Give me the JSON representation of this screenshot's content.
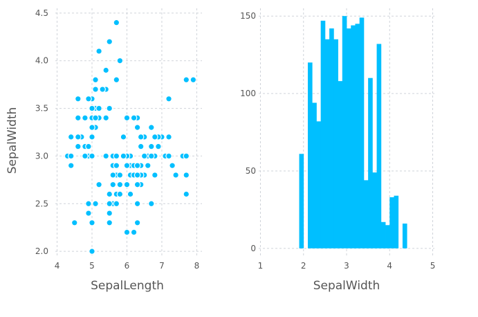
{
  "chart_data": [
    {
      "type": "scatter",
      "title": "",
      "xlabel": "SepalLength",
      "ylabel": "SepalWidth",
      "xlim": [
        3.95,
        8.15
      ],
      "ylim": [
        1.95,
        4.55
      ],
      "xticks": [
        4,
        5,
        6,
        7,
        8
      ],
      "xtick_labels": [
        "4",
        "5",
        "6",
        "7",
        "8"
      ],
      "yticks": [
        2.0,
        2.5,
        3.0,
        3.5,
        4.0,
        4.5
      ],
      "ytick_labels": [
        "2.0",
        "2.5",
        "3.0",
        "3.5",
        "4.0",
        "4.5"
      ],
      "grid": true,
      "legend": "none",
      "color": "#00bfff",
      "points": [
        [
          5.1,
          3.5
        ],
        [
          4.9,
          3.0
        ],
        [
          4.7,
          3.2
        ],
        [
          4.6,
          3.1
        ],
        [
          5.0,
          3.6
        ],
        [
          5.4,
          3.9
        ],
        [
          4.6,
          3.4
        ],
        [
          5.0,
          3.4
        ],
        [
          4.4,
          2.9
        ],
        [
          4.9,
          3.1
        ],
        [
          5.4,
          3.7
        ],
        [
          4.8,
          3.4
        ],
        [
          4.8,
          3.0
        ],
        [
          4.3,
          3.0
        ],
        [
          5.8,
          4.0
        ],
        [
          5.7,
          4.4
        ],
        [
          5.4,
          3.9
        ],
        [
          5.1,
          3.5
        ],
        [
          5.7,
          3.8
        ],
        [
          5.1,
          3.8
        ],
        [
          5.4,
          3.4
        ],
        [
          5.1,
          3.7
        ],
        [
          4.6,
          3.6
        ],
        [
          5.1,
          3.3
        ],
        [
          4.8,
          3.4
        ],
        [
          5.0,
          3.0
        ],
        [
          5.0,
          3.4
        ],
        [
          5.2,
          3.5
        ],
        [
          5.2,
          3.4
        ],
        [
          4.7,
          3.2
        ],
        [
          4.8,
          3.1
        ],
        [
          5.4,
          3.4
        ],
        [
          5.2,
          4.1
        ],
        [
          5.5,
          4.2
        ],
        [
          4.9,
          3.1
        ],
        [
          5.0,
          3.2
        ],
        [
          5.5,
          3.5
        ],
        [
          4.9,
          3.6
        ],
        [
          4.4,
          3.0
        ],
        [
          5.1,
          3.4
        ],
        [
          5.0,
          3.5
        ],
        [
          4.5,
          2.3
        ],
        [
          4.4,
          3.2
        ],
        [
          5.0,
          3.5
        ],
        [
          5.1,
          3.8
        ],
        [
          4.8,
          3.0
        ],
        [
          5.1,
          3.8
        ],
        [
          4.6,
          3.2
        ],
        [
          5.3,
          3.7
        ],
        [
          5.0,
          3.3
        ],
        [
          7.0,
          3.2
        ],
        [
          6.4,
          3.2
        ],
        [
          6.9,
          3.1
        ],
        [
          5.5,
          2.3
        ],
        [
          6.5,
          2.8
        ],
        [
          5.7,
          2.8
        ],
        [
          6.3,
          3.3
        ],
        [
          4.9,
          2.4
        ],
        [
          6.6,
          2.9
        ],
        [
          5.2,
          2.7
        ],
        [
          5.0,
          2.0
        ],
        [
          5.9,
          3.0
        ],
        [
          6.0,
          2.2
        ],
        [
          6.1,
          2.9
        ],
        [
          5.6,
          2.9
        ],
        [
          6.7,
          3.1
        ],
        [
          5.6,
          3.0
        ],
        [
          5.8,
          2.7
        ],
        [
          6.2,
          2.2
        ],
        [
          5.6,
          2.5
        ],
        [
          5.9,
          3.2
        ],
        [
          6.1,
          2.8
        ],
        [
          6.3,
          2.5
        ],
        [
          6.1,
          2.8
        ],
        [
          6.4,
          2.9
        ],
        [
          6.6,
          3.0
        ],
        [
          6.8,
          2.8
        ],
        [
          6.7,
          3.0
        ],
        [
          6.0,
          2.9
        ],
        [
          5.7,
          2.6
        ],
        [
          5.5,
          2.4
        ],
        [
          5.5,
          2.4
        ],
        [
          5.8,
          2.7
        ],
        [
          6.0,
          2.7
        ],
        [
          5.4,
          3.0
        ],
        [
          6.0,
          3.4
        ],
        [
          6.7,
          3.1
        ],
        [
          6.3,
          2.3
        ],
        [
          5.6,
          3.0
        ],
        [
          5.5,
          2.5
        ],
        [
          5.5,
          2.6
        ],
        [
          6.1,
          3.0
        ],
        [
          5.8,
          2.6
        ],
        [
          5.0,
          2.3
        ],
        [
          5.6,
          2.7
        ],
        [
          5.7,
          3.0
        ],
        [
          5.7,
          2.9
        ],
        [
          6.2,
          2.9
        ],
        [
          5.1,
          2.5
        ],
        [
          5.7,
          2.8
        ],
        [
          6.3,
          3.3
        ],
        [
          5.8,
          2.7
        ],
        [
          7.1,
          3.0
        ],
        [
          6.3,
          2.9
        ],
        [
          6.5,
          3.0
        ],
        [
          7.6,
          3.0
        ],
        [
          4.9,
          2.5
        ],
        [
          7.3,
          2.9
        ],
        [
          6.7,
          2.5
        ],
        [
          7.2,
          3.6
        ],
        [
          6.5,
          3.2
        ],
        [
          6.4,
          2.7
        ],
        [
          6.8,
          3.0
        ],
        [
          5.7,
          2.5
        ],
        [
          5.8,
          2.8
        ],
        [
          6.4,
          3.2
        ],
        [
          6.5,
          3.0
        ],
        [
          7.7,
          3.8
        ],
        [
          7.7,
          2.6
        ],
        [
          6.0,
          2.2
        ],
        [
          6.9,
          3.2
        ],
        [
          5.6,
          2.8
        ],
        [
          7.7,
          2.8
        ],
        [
          6.3,
          2.7
        ],
        [
          6.7,
          3.3
        ],
        [
          7.2,
          3.2
        ],
        [
          6.2,
          2.8
        ],
        [
          6.1,
          3.0
        ],
        [
          6.4,
          2.8
        ],
        [
          7.2,
          3.0
        ],
        [
          7.4,
          2.8
        ],
        [
          7.9,
          3.8
        ],
        [
          6.4,
          2.8
        ],
        [
          6.3,
          2.8
        ],
        [
          6.1,
          2.6
        ],
        [
          7.7,
          3.0
        ],
        [
          6.3,
          3.4
        ],
        [
          6.4,
          3.1
        ],
        [
          6.0,
          3.0
        ],
        [
          6.9,
          3.1
        ],
        [
          6.7,
          3.1
        ],
        [
          6.9,
          3.1
        ],
        [
          5.8,
          2.7
        ],
        [
          6.8,
          3.2
        ],
        [
          6.7,
          3.3
        ],
        [
          6.7,
          3.0
        ],
        [
          6.3,
          2.5
        ],
        [
          6.5,
          3.0
        ],
        [
          6.2,
          3.4
        ],
        [
          5.9,
          3.0
        ]
      ]
    },
    {
      "type": "bar",
      "title": "",
      "xlabel": "SepalWidth",
      "ylabel": "",
      "xlim": [
        0.96,
        5.04
      ],
      "ylim": [
        -5,
        155
      ],
      "xticks": [
        1,
        2,
        3,
        4,
        5
      ],
      "xtick_labels": [
        "1",
        "2",
        "3",
        "4",
        "5"
      ],
      "yticks": [
        0,
        50,
        100,
        150
      ],
      "ytick_labels": [
        "0",
        "50",
        "100",
        "150"
      ],
      "grid": true,
      "legend": "none",
      "color": "#00bfff",
      "bin_width": 0.1,
      "bins": [
        {
          "x": 1.95,
          "value": 61
        },
        {
          "x": 2.05,
          "value": 0
        },
        {
          "x": 2.15,
          "value": 120
        },
        {
          "x": 2.25,
          "value": 94
        },
        {
          "x": 2.35,
          "value": 82
        },
        {
          "x": 2.45,
          "value": 147
        },
        {
          "x": 2.55,
          "value": 135
        },
        {
          "x": 2.65,
          "value": 142
        },
        {
          "x": 2.75,
          "value": 135
        },
        {
          "x": 2.85,
          "value": 108
        },
        {
          "x": 2.95,
          "value": 150
        },
        {
          "x": 3.05,
          "value": 142
        },
        {
          "x": 3.15,
          "value": 144
        },
        {
          "x": 3.25,
          "value": 145
        },
        {
          "x": 3.35,
          "value": 149
        },
        {
          "x": 3.45,
          "value": 44
        },
        {
          "x": 3.55,
          "value": 110
        },
        {
          "x": 3.65,
          "value": 49
        },
        {
          "x": 3.75,
          "value": 132
        },
        {
          "x": 3.85,
          "value": 17
        },
        {
          "x": 3.95,
          "value": 15
        },
        {
          "x": 4.05,
          "value": 33
        },
        {
          "x": 4.15,
          "value": 34
        },
        {
          "x": 4.25,
          "value": 0
        },
        {
          "x": 4.35,
          "value": 16
        }
      ]
    }
  ]
}
